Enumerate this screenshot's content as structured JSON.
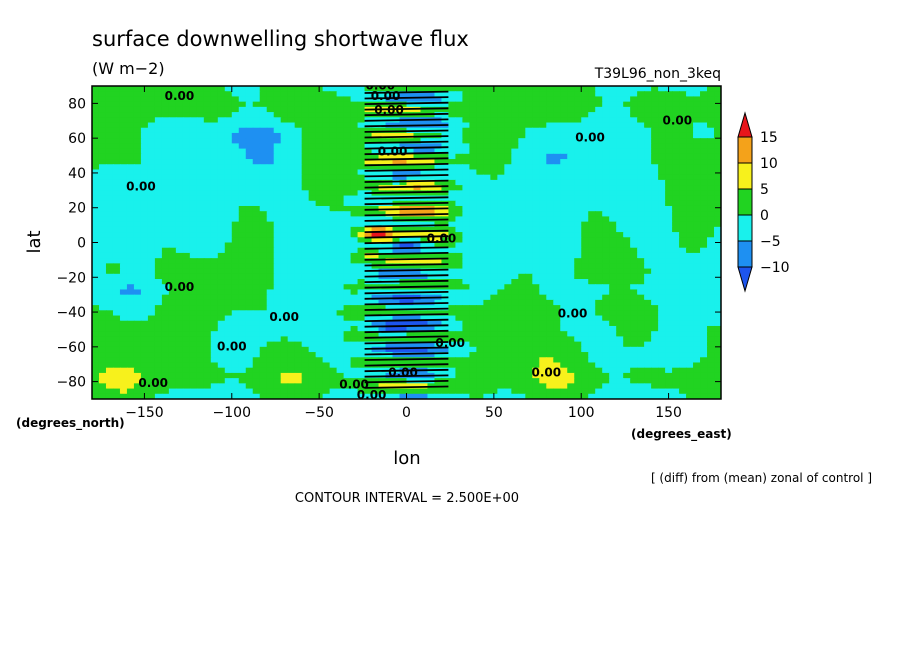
{
  "chart_data": {
    "type": "heatmap",
    "title": "surface downwelling shortwave flux",
    "units": "(W m−2)",
    "run_label": "T39L96_non_3keq",
    "xlabel": "lon",
    "ylabel": "lat",
    "x_unit_label": "(degrees_east)",
    "y_unit_label": "(degrees_north)",
    "xlim": [
      -180,
      180
    ],
    "ylim": [
      -90,
      90
    ],
    "x_ticks": [
      -150,
      -100,
      -50,
      0,
      50,
      100,
      150
    ],
    "y_ticks": [
      80,
      60,
      40,
      20,
      0,
      -20,
      -40,
      -60,
      -80
    ],
    "x_tick_labels": [
      "−150",
      "−100",
      "−50",
      "0",
      "50",
      "100",
      "150"
    ],
    "y_tick_labels": [
      "80",
      "60",
      "40",
      "20",
      "0",
      "−20",
      "−40",
      "−60",
      "−80"
    ],
    "colorbar": {
      "labels": [
        "15",
        "10",
        "5",
        "0",
        "−5",
        "−10"
      ],
      "levels": [
        15,
        10,
        5,
        0,
        -5,
        -10
      ],
      "colors": [
        "#e8151b",
        "#f4a21a",
        "#f7f11c",
        "#21d321",
        "#19f1ec",
        "#1e90f2",
        "#1d55ed"
      ]
    },
    "contour_labels": [
      {
        "text": "0.00",
        "lon": -130,
        "lat": 82
      },
      {
        "text": "0.00",
        "lon": -15,
        "lat": 88
      },
      {
        "text": "0.00",
        "lon": -12,
        "lat": 82
      },
      {
        "text": "0.00",
        "lon": -10,
        "lat": 74
      },
      {
        "text": "0.00",
        "lon": 105,
        "lat": 58
      },
      {
        "text": "0.00",
        "lon": 155,
        "lat": 68
      },
      {
        "text": "0.00",
        "lon": -152,
        "lat": 30
      },
      {
        "text": "0.00",
        "lon": -8,
        "lat": 50
      },
      {
        "text": "0.00",
        "lon": 20,
        "lat": 0
      },
      {
        "text": "0.00",
        "lon": -130,
        "lat": -28
      },
      {
        "text": "0.00",
        "lon": -70,
        "lat": -45
      },
      {
        "text": "0.00",
        "lon": 95,
        "lat": -43
      },
      {
        "text": "0.00",
        "lon": 25,
        "lat": -60
      },
      {
        "text": "0.00",
        "lon": -100,
        "lat": -62
      },
      {
        "text": "0.00",
        "lon": -145,
        "lat": -83
      },
      {
        "text": "0.00",
        "lon": -30,
        "lat": -84
      },
      {
        "text": "0.00",
        "lon": 80,
        "lat": -77
      },
      {
        "text": "0.00",
        "lon": -2,
        "lat": -77
      },
      {
        "text": "0.00",
        "lon": -20,
        "lat": -90
      }
    ],
    "grid": false
  },
  "footer": {
    "diff_note": "[ (diff) from (mean) zonal of control ]",
    "contour_interval": "CONTOUR INTERVAL = 2.500E+00"
  }
}
